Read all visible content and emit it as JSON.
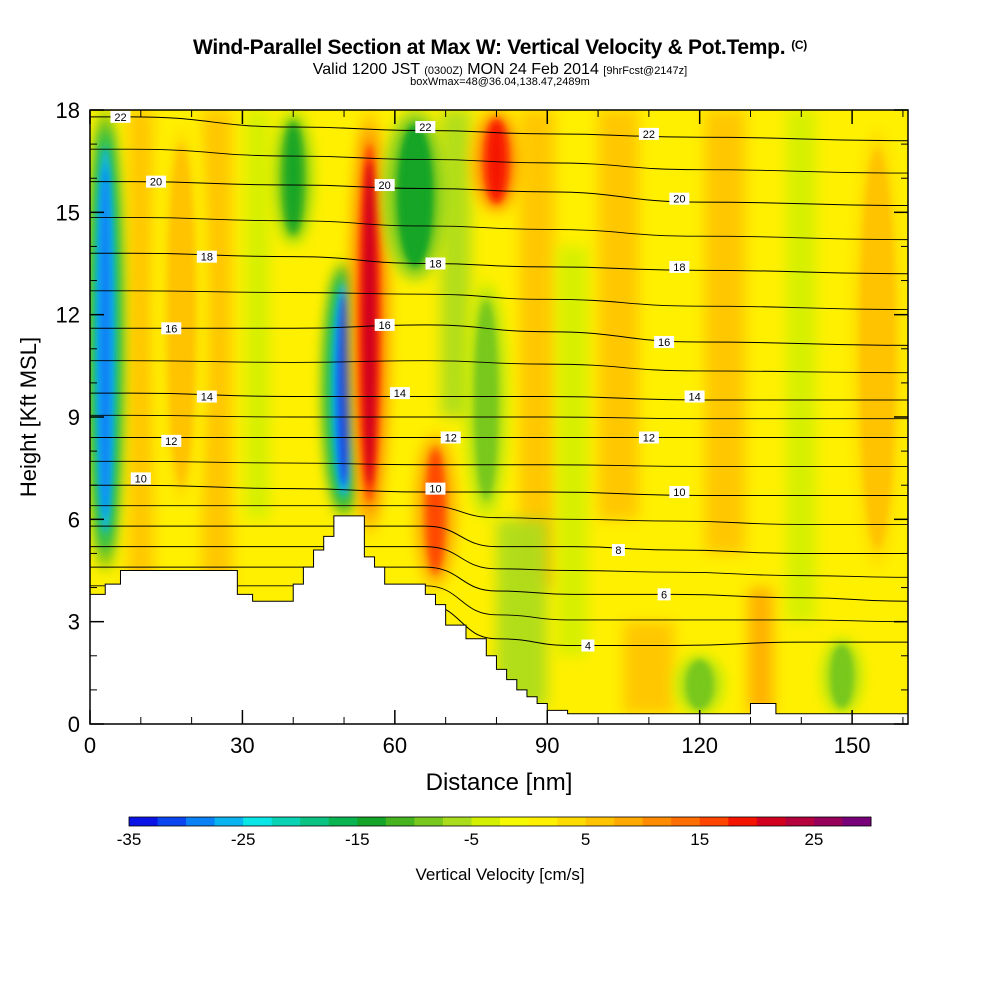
{
  "title": {
    "main": "Wind-Parallel Section at Max W: Vertical Velocity & Pot.Temp.",
    "copyright": "(C)",
    "valid_prefix": "Valid 1200 JST",
    "valid_utc": "(0300Z)",
    "valid_date": "MON 24 Feb 2014",
    "forecast": "[9hrFcst@2147z]",
    "box": "boxWmax=48@36.04,138.47,2489m"
  },
  "chart_data": {
    "type": "heatmap",
    "xlabel": "Distance [nm]",
    "ylabel": "Height [Kft MSL]",
    "xlim": [
      0,
      161
    ],
    "ylim": [
      0,
      18
    ],
    "x_ticks": [
      0,
      30,
      60,
      90,
      120,
      150
    ],
    "y_ticks": [
      0,
      3,
      6,
      9,
      12,
      15,
      18
    ],
    "colorbar": {
      "label": "Vertical Velocity [cm/s]",
      "min": -35,
      "max": 30,
      "step": 2.5,
      "tick_labels": [
        "-35",
        "-25",
        "-15",
        "-5",
        "5",
        "15",
        "25"
      ],
      "colors": [
        "#0a14e6",
        "#0a46f0",
        "#0a82f5",
        "#0ab4f0",
        "#0ae6e6",
        "#0ad2b4",
        "#0ac382",
        "#0ab450",
        "#14a528",
        "#46b41e",
        "#78c81e",
        "#aadc1e",
        "#d2f000",
        "#f5fa00",
        "#fff000",
        "#ffdc00",
        "#ffc300",
        "#ffaa00",
        "#ff8c00",
        "#ff6e00",
        "#ff4600",
        "#f51400",
        "#d2001e",
        "#b4003c",
        "#96005a",
        "#780078"
      ]
    },
    "terrain_profile": {
      "x": [
        0,
        3,
        3,
        6,
        6,
        10,
        10,
        15,
        15,
        20,
        20,
        25,
        25,
        29,
        29,
        32,
        32,
        40,
        40,
        42,
        42,
        44,
        44,
        46,
        46,
        48,
        48,
        50,
        50,
        52,
        52,
        54,
        54,
        56,
        56,
        58,
        58,
        66,
        66,
        68,
        68,
        70,
        70,
        72,
        72,
        74,
        74,
        78,
        78,
        80,
        80,
        82,
        82,
        84,
        84,
        86,
        86,
        88,
        88,
        90,
        90,
        94,
        94,
        96,
        96,
        100,
        100,
        112,
        112,
        120,
        120,
        130,
        130,
        135,
        135,
        141,
        141,
        161
      ],
      "y": [
        3.8,
        3.8,
        4.1,
        4.1,
        4.5,
        4.5,
        4.5,
        4.5,
        4.5,
        4.5,
        4.5,
        4.5,
        4.5,
        4.5,
        3.8,
        3.8,
        3.6,
        3.6,
        4.1,
        4.1,
        4.6,
        4.6,
        5.1,
        5.1,
        5.5,
        5.5,
        6.1,
        6.1,
        6.1,
        6.1,
        6.1,
        6.1,
        4.9,
        4.9,
        4.6,
        4.6,
        4.1,
        4.1,
        3.8,
        3.8,
        3.5,
        3.5,
        2.9,
        2.9,
        2.9,
        2.9,
        2.5,
        2.5,
        2.0,
        2.0,
        1.6,
        1.6,
        1.3,
        1.3,
        1.0,
        1.0,
        0.8,
        0.8,
        0.6,
        0.6,
        0.4,
        0.4,
        0.3,
        0.3,
        0.3,
        0.3,
        0.3,
        0.3,
        0.3,
        0.3,
        0.3,
        0.3,
        0.6,
        0.6,
        0.3,
        0.3,
        0.3,
        0.3
      ]
    },
    "potential_temperature_isolines": [
      {
        "label": "4",
        "y": [
          3.5,
          2.5,
          2.3,
          2.3,
          2.4,
          2.4
        ],
        "x": [
          66,
          80,
          95,
          115,
          140,
          161
        ]
      },
      {
        "label": "6",
        "y": [
          4.6,
          3.9,
          3.8,
          3.8,
          3.7,
          3.6
        ],
        "x": [
          66,
          80,
          95,
          115,
          140,
          161
        ]
      },
      {
        "label": "8",
        "y": [
          5.8,
          5.2,
          5.2,
          5.1,
          5.0,
          5.0
        ],
        "x": [
          66,
          80,
          95,
          115,
          140,
          161
        ]
      },
      {
        "label": "10",
        "y": [
          7.0,
          6.9,
          6.8,
          6.8,
          6.7,
          6.7
        ],
        "x": [
          8,
          40,
          66,
          90,
          120,
          161
        ]
      },
      {
        "label": "12",
        "y": [
          8.4,
          8.4,
          8.4,
          8.4,
          8.4,
          8.4
        ],
        "x": [
          8,
          40,
          66,
          90,
          120,
          161
        ]
      },
      {
        "label": "14",
        "y": [
          9.7,
          9.6,
          9.6,
          9.6,
          9.5,
          9.5
        ],
        "x": [
          8,
          40,
          66,
          90,
          120,
          161
        ]
      },
      {
        "label": "16",
        "y": [
          11.6,
          11.6,
          11.7,
          11.5,
          11.2,
          11.1
        ],
        "x": [
          8,
          40,
          66,
          90,
          120,
          161
        ]
      },
      {
        "label": "18",
        "y": [
          13.8,
          13.7,
          13.5,
          13.4,
          13.3,
          13.2
        ],
        "x": [
          8,
          40,
          66,
          90,
          120,
          161
        ]
      },
      {
        "label": "20",
        "y": [
          15.9,
          15.8,
          15.7,
          15.6,
          15.3,
          15.2
        ],
        "x": [
          8,
          40,
          66,
          90,
          120,
          161
        ]
      },
      {
        "label": "22",
        "y": [
          17.8,
          17.5,
          17.4,
          17.3,
          17.2,
          17.1
        ],
        "x": [
          8,
          40,
          66,
          90,
          120,
          161
        ]
      }
    ],
    "isoline_labels": [
      {
        "text": "22",
        "x": 6,
        "y": 17.8
      },
      {
        "text": "20",
        "x": 13,
        "y": 15.9
      },
      {
        "text": "18",
        "x": 23,
        "y": 13.7
      },
      {
        "text": "16",
        "x": 16,
        "y": 11.6
      },
      {
        "text": "14",
        "x": 23,
        "y": 9.6
      },
      {
        "text": "12",
        "x": 16,
        "y": 8.3
      },
      {
        "text": "10",
        "x": 10,
        "y": 7.2
      },
      {
        "text": "22",
        "x": 66,
        "y": 17.5
      },
      {
        "text": "20",
        "x": 58,
        "y": 15.8
      },
      {
        "text": "18",
        "x": 68,
        "y": 13.5
      },
      {
        "text": "16",
        "x": 58,
        "y": 11.7
      },
      {
        "text": "14",
        "x": 61,
        "y": 9.7
      },
      {
        "text": "12",
        "x": 71,
        "y": 8.4
      },
      {
        "text": "10",
        "x": 68,
        "y": 6.9
      },
      {
        "text": "22",
        "x": 110,
        "y": 17.3
      },
      {
        "text": "20",
        "x": 116,
        "y": 15.4
      },
      {
        "text": "18",
        "x": 116,
        "y": 13.4
      },
      {
        "text": "16",
        "x": 113,
        "y": 11.2
      },
      {
        "text": "14",
        "x": 119,
        "y": 9.6
      },
      {
        "text": "12",
        "x": 110,
        "y": 8.4
      },
      {
        "text": "10",
        "x": 116,
        "y": 6.8
      },
      {
        "text": "8",
        "x": 104,
        "y": 5.1
      },
      {
        "text": "6",
        "x": 113,
        "y": 3.8
      },
      {
        "text": "4",
        "x": 98,
        "y": 2.3
      }
    ],
    "vertical_velocity_features": [
      {
        "kind": "downdraft",
        "x_center": 3,
        "x_width": 4,
        "y_from": 4.5,
        "y_to": 18,
        "peak": -30
      },
      {
        "kind": "downdraft",
        "x_center": 50,
        "x_width": 5,
        "y_from": 6.1,
        "y_to": 13.5,
        "peak": -32
      },
      {
        "kind": "updraft",
        "x_center": 55,
        "x_width": 5,
        "y_from": 5.5,
        "y_to": 18,
        "peak": 20
      },
      {
        "kind": "downdraft",
        "x_center": 64,
        "x_width": 8,
        "y_from": 13,
        "y_to": 18,
        "peak": -15
      },
      {
        "kind": "updraft",
        "x_center": 68,
        "x_width": 5,
        "y_from": 4.0,
        "y_to": 8.5,
        "peak": 15
      },
      {
        "kind": "updraft",
        "x_center": 80,
        "x_width": 6,
        "y_from": 15,
        "y_to": 18,
        "peak": 18
      },
      {
        "kind": "downdraft",
        "x_center": 40,
        "x_width": 5,
        "y_from": 14,
        "y_to": 18,
        "peak": -14
      },
      {
        "kind": "downdraft",
        "x_center": 78,
        "x_width": 5,
        "y_from": 6,
        "y_to": 13,
        "peak": -9
      },
      {
        "kind": "updraft",
        "x_center": 18,
        "x_width": 6,
        "y_from": 6,
        "y_to": 18,
        "peak": 7
      },
      {
        "kind": "updraft",
        "x_center": 155,
        "x_width": 8,
        "y_from": 4,
        "y_to": 18,
        "peak": 6
      },
      {
        "kind": "downdraft",
        "x_center": 120,
        "x_width": 6,
        "y_from": 0.3,
        "y_to": 2,
        "peak": -10
      },
      {
        "kind": "downdraft",
        "x_center": 148,
        "x_width": 5,
        "y_from": 0.3,
        "y_to": 2.5,
        "peak": -10
      }
    ]
  }
}
